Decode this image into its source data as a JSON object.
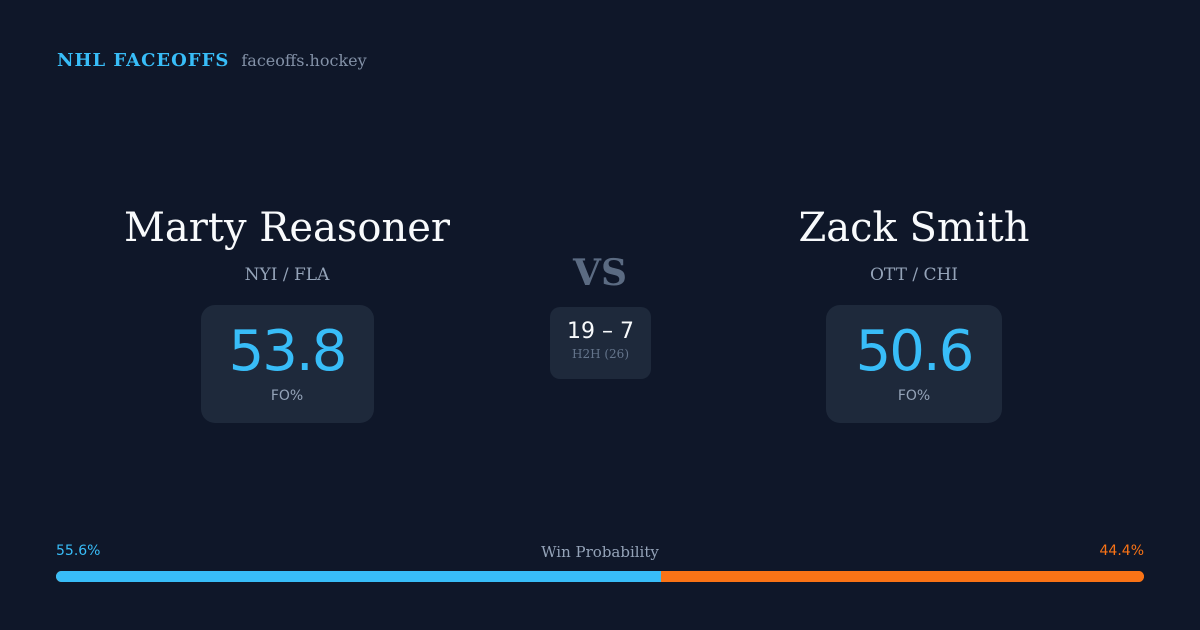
{
  "brand": {
    "title": "NHL FACEOFFS",
    "domain": "faceoffs.hockey"
  },
  "player1": {
    "name": "Marty Reasoner",
    "teams": "NYI / FLA",
    "fo_pct": "53.8",
    "fo_label": "FO%"
  },
  "player2": {
    "name": "Zack Smith",
    "teams": "OTT / CHI",
    "fo_pct": "50.6",
    "fo_label": "FO%"
  },
  "vs": "VS",
  "h2h": {
    "score": "19 – 7",
    "label": "H2H (26)"
  },
  "win_probability": {
    "label": "Win Probability",
    "left_pct": "55.6%",
    "right_pct": "44.4%",
    "left_value": 55.6,
    "colors": {
      "left": "#38bdf8",
      "right": "#f97316"
    }
  }
}
